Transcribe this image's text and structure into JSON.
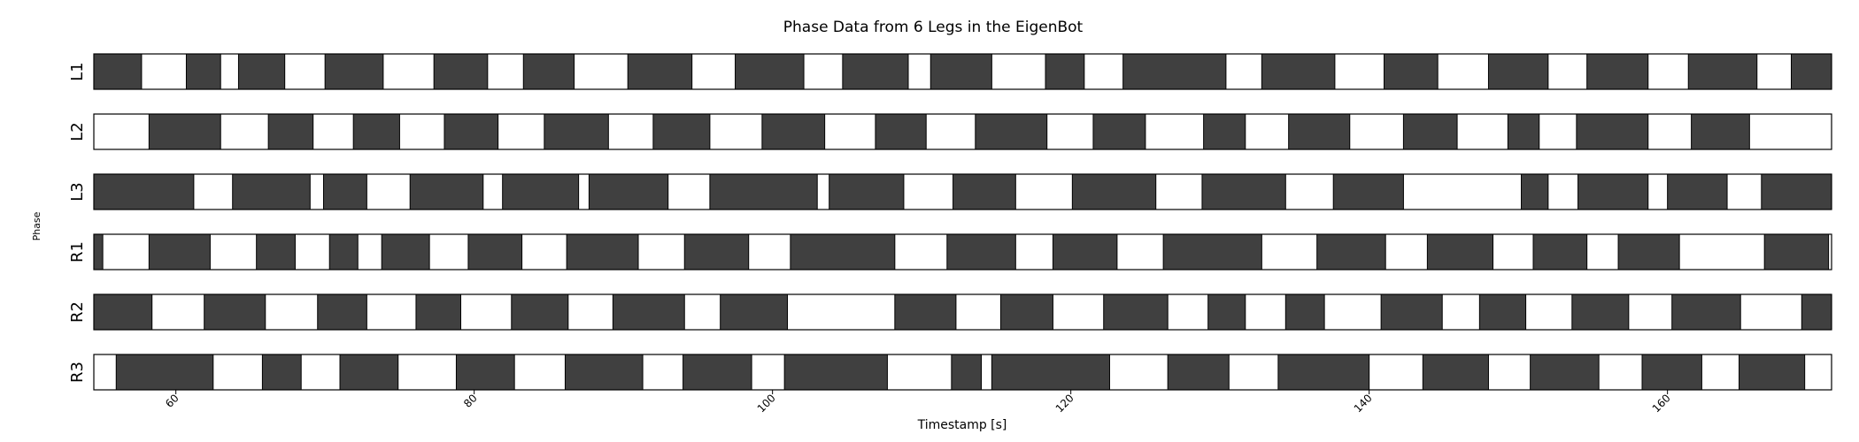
{
  "chart_data": {
    "type": "gantt",
    "title": "Phase Data from 6 Legs in the EigenBot",
    "xlabel": "Timestamp [s]",
    "ylabel": "Phase",
    "xlim": [
      54.5,
      171.0
    ],
    "x_ticks": [
      60,
      80,
      100,
      120,
      140,
      160
    ],
    "colors": {
      "stance": "#404040",
      "swing": "#ffffff",
      "border": "#000000"
    },
    "legs": [
      {
        "name": "L1",
        "segments": [
          [
            54.5,
            57.7
          ],
          [
            60.7,
            63.0
          ],
          [
            64.2,
            67.3
          ],
          [
            70.0,
            73.9
          ],
          [
            77.3,
            80.9
          ],
          [
            83.3,
            86.7
          ],
          [
            90.3,
            94.6
          ],
          [
            97.5,
            102.1
          ],
          [
            104.7,
            109.1
          ],
          [
            110.6,
            114.7
          ],
          [
            118.3,
            120.9
          ],
          [
            123.5,
            130.4
          ],
          [
            132.8,
            137.7
          ],
          [
            141.0,
            144.6
          ],
          [
            148.0,
            152.0
          ],
          [
            154.6,
            158.7
          ],
          [
            161.4,
            166.0
          ],
          [
            168.3,
            171.0
          ]
        ]
      },
      {
        "name": "L2",
        "segments": [
          [
            58.2,
            63.0
          ],
          [
            66.2,
            69.2
          ],
          [
            71.9,
            75.0
          ],
          [
            78.0,
            81.6
          ],
          [
            84.7,
            89.0
          ],
          [
            92.0,
            95.8
          ],
          [
            99.3,
            103.5
          ],
          [
            106.9,
            110.3
          ],
          [
            113.6,
            118.4
          ],
          [
            121.5,
            125.0
          ],
          [
            128.9,
            131.7
          ],
          [
            134.6,
            138.7
          ],
          [
            142.3,
            145.9
          ],
          [
            149.3,
            151.4
          ],
          [
            153.9,
            158.7
          ],
          [
            161.6,
            165.5
          ]
        ]
      },
      {
        "name": "L3",
        "segments": [
          [
            54.5,
            61.2
          ],
          [
            63.8,
            69.0
          ],
          [
            69.9,
            72.8
          ],
          [
            75.7,
            80.6
          ],
          [
            81.9,
            87.0
          ],
          [
            87.7,
            93.0
          ],
          [
            95.8,
            103.0
          ],
          [
            103.8,
            108.8
          ],
          [
            112.1,
            116.3
          ],
          [
            120.1,
            125.7
          ],
          [
            128.8,
            134.4
          ],
          [
            137.6,
            142.3
          ],
          [
            150.2,
            152.0
          ],
          [
            154.0,
            158.7
          ],
          [
            160.0,
            164.0
          ],
          [
            166.3,
            171.0
          ]
        ]
      },
      {
        "name": "R1",
        "segments": [
          [
            54.5,
            55.1
          ],
          [
            58.2,
            62.3
          ],
          [
            65.4,
            68.0
          ],
          [
            70.3,
            72.2
          ],
          [
            73.8,
            77.0
          ],
          [
            79.6,
            83.2
          ],
          [
            86.2,
            91.0
          ],
          [
            94.1,
            98.4
          ],
          [
            101.2,
            108.2
          ],
          [
            111.7,
            116.3
          ],
          [
            118.8,
            123.1
          ],
          [
            126.2,
            132.8
          ],
          [
            136.5,
            141.1
          ],
          [
            143.9,
            148.3
          ],
          [
            151.0,
            154.6
          ],
          [
            156.7,
            160.8
          ],
          [
            166.5,
            170.8
          ]
        ]
      },
      {
        "name": "R2",
        "segments": [
          [
            54.5,
            58.4
          ],
          [
            61.9,
            66.0
          ],
          [
            69.5,
            72.8
          ],
          [
            76.1,
            79.1
          ],
          [
            82.5,
            86.3
          ],
          [
            89.3,
            94.1
          ],
          [
            96.5,
            101.0
          ],
          [
            108.2,
            112.3
          ],
          [
            115.3,
            118.8
          ],
          [
            122.2,
            126.5
          ],
          [
            129.2,
            131.7
          ],
          [
            134.4,
            137.0
          ],
          [
            140.8,
            144.9
          ],
          [
            147.4,
            150.5
          ],
          [
            153.6,
            157.4
          ],
          [
            160.3,
            164.9
          ],
          [
            169.0,
            171.0
          ]
        ]
      },
      {
        "name": "R3",
        "segments": [
          [
            56.0,
            62.5
          ],
          [
            65.8,
            68.4
          ],
          [
            71.0,
            74.9
          ],
          [
            78.8,
            82.7
          ],
          [
            86.1,
            91.3
          ],
          [
            94.0,
            98.6
          ],
          [
            100.8,
            107.7
          ],
          [
            112.0,
            114.0
          ],
          [
            114.7,
            122.6
          ],
          [
            126.5,
            130.6
          ],
          [
            133.9,
            140.0
          ],
          [
            143.6,
            148.0
          ],
          [
            150.8,
            155.4
          ],
          [
            158.3,
            162.3
          ],
          [
            164.8,
            169.2
          ]
        ]
      }
    ]
  }
}
